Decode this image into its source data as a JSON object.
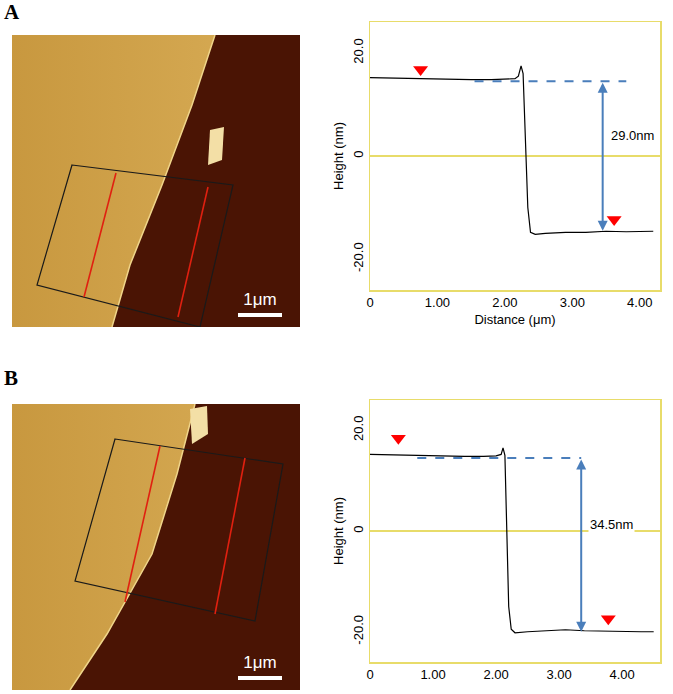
{
  "figure": {
    "panels": [
      {
        "label": "A",
        "scale_bar": "1μm"
      },
      {
        "label": "B",
        "scale_bar": "1μm"
      }
    ]
  },
  "chart_data": [
    {
      "type": "line",
      "x_label": "Distance (μm)",
      "y_label": "Height (nm)",
      "xlim": [
        0,
        4.3
      ],
      "ylim": [
        -26,
        26
      ],
      "xticks": [
        0,
        {
          "value": 1,
          "label": "1.00"
        },
        {
          "value": 2,
          "label": "2.00"
        },
        {
          "value": 3,
          "label": "3.00"
        },
        {
          "value": 4,
          "label": "4.00"
        }
      ],
      "yticks": [
        {
          "value": -20,
          "label": "-20.0"
        },
        0,
        {
          "value": 20,
          "label": "20.0"
        }
      ],
      "grid": false,
      "series": [
        {
          "color": "#000000",
          "x": [
            0,
            0.3,
            0.6,
            0.9,
            1.2,
            1.5,
            1.8,
            2.0,
            2.15,
            2.2,
            2.24,
            2.27,
            2.3,
            2.34,
            2.38,
            2.45,
            2.6,
            2.9,
            3.2,
            3.5,
            3.8,
            4.1,
            4.2
          ],
          "values": [
            15.2,
            15.1,
            15.0,
            14.9,
            14.9,
            14.8,
            14.8,
            14.9,
            15.0,
            15.5,
            17.5,
            16.0,
            5.0,
            -10.0,
            -14.8,
            -15.2,
            -15.0,
            -14.8,
            -14.8,
            -14.6,
            -14.7,
            -14.6,
            -14.6
          ]
        },
        {
          "type": "scatter",
          "marker": "triangle-down",
          "color": "#ff0000",
          "x": [
            0.75,
            3.62
          ],
          "values": [
            16.8,
            -12.3
          ]
        }
      ],
      "measurement": {
        "x": 3.45,
        "from": 14.5,
        "to": -14.5,
        "line_x": [
          1.55,
          3.8
        ],
        "label": "29.0nm",
        "color": "#4a7ebb"
      }
    },
    {
      "type": "line",
      "y_label": "Height (nm)",
      "xlim": [
        0,
        4.6
      ],
      "ylim": [
        -26,
        26
      ],
      "xticks": [
        0,
        {
          "value": 1,
          "label": "1.00"
        },
        {
          "value": 2,
          "label": "2.00"
        },
        {
          "value": 3,
          "label": "3.00"
        },
        {
          "value": 4,
          "label": "4.00"
        }
      ],
      "yticks": [
        {
          "value": -20,
          "label": "-20.0"
        },
        0,
        {
          "value": 20,
          "label": "20.0"
        }
      ],
      "grid": false,
      "series": [
        {
          "color": "#000000",
          "x": [
            0,
            0.3,
            0.6,
            0.9,
            1.2,
            1.5,
            1.8,
            2.0,
            2.08,
            2.11,
            2.14,
            2.17,
            2.2,
            2.24,
            2.3,
            2.5,
            2.8,
            3.1,
            3.4,
            3.7,
            4.0,
            4.3,
            4.5
          ],
          "values": [
            15.2,
            15.1,
            15.0,
            14.9,
            14.9,
            14.8,
            14.8,
            14.9,
            15.2,
            16.5,
            15.0,
            0.0,
            -15.0,
            -19.5,
            -20.2,
            -20.0,
            -19.8,
            -19.6,
            -19.8,
            -19.9,
            -20.0,
            -20.0,
            -20.0
          ]
        },
        {
          "type": "scatter",
          "marker": "triangle-down",
          "color": "#ff0000",
          "x": [
            0.45,
            3.78
          ],
          "values": [
            18.4,
            -17.4
          ]
        }
      ],
      "measurement": {
        "x": 3.35,
        "from": 14.5,
        "to": -20.0,
        "line_x": [
          0.75,
          3.35
        ],
        "label": "34.5nm",
        "color": "#4a7ebb"
      }
    }
  ]
}
